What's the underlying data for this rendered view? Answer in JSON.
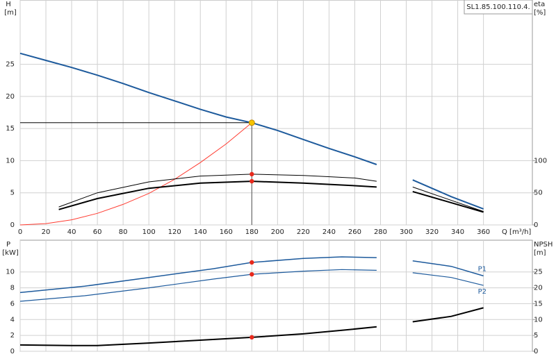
{
  "chart_data": [
    {
      "type": "line",
      "title": "SL1.85.100.110.4.",
      "y_label": "H",
      "y_unit": "[m]",
      "y2_label": "eta",
      "y2_unit": "[%]",
      "x_label": "Q [m³/h]",
      "xlim": [
        0,
        398
      ],
      "ylim": [
        0,
        35
      ],
      "y2lim": [
        0,
        350
      ],
      "xticks": [
        0,
        20,
        40,
        60,
        80,
        100,
        120,
        140,
        160,
        180,
        200,
        220,
        240,
        260,
        280,
        300,
        320,
        340,
        360
      ],
      "yticks": [
        0,
        5,
        10,
        15,
        20,
        25
      ],
      "y2ticks": [
        0,
        50,
        100
      ],
      "grid": true,
      "xtick_labels": true,
      "duty_point": {
        "x": 180,
        "y": 15.9,
        "color": "#f5c400"
      },
      "marker_x": 180,
      "marker_color": "#e8291c",
      "series": [
        {
          "color": "#1d5a9c",
          "width": 2,
          "x": [
            0,
            20,
            40,
            60,
            80,
            100,
            120,
            140,
            160,
            180,
            200,
            220,
            240,
            260,
            277,
            290,
            305,
            335,
            360
          ],
          "values": [
            26.7,
            25.6,
            24.5,
            23.3,
            22.0,
            20.6,
            19.3,
            18.0,
            16.8,
            15.9,
            14.7,
            13.3,
            11.9,
            10.6,
            9.4,
            null,
            7.0,
            4.4,
            2.5
          ]
        },
        {
          "color": "#ff3b30",
          "width": 1,
          "x": [
            0,
            20,
            40,
            60,
            80,
            100,
            120,
            140,
            160,
            180
          ],
          "values": [
            0,
            0.2,
            0.8,
            1.8,
            3.2,
            4.9,
            7.1,
            9.7,
            12.6,
            15.9
          ]
        },
        {
          "color": "#000000",
          "width": 1,
          "axis": "y2",
          "x": [
            30,
            60,
            100,
            140,
            180,
            220,
            260,
            277,
            290,
            305,
            360
          ],
          "values": [
            28,
            50,
            67,
            76,
            79,
            77,
            73,
            68,
            null,
            59,
            21
          ]
        },
        {
          "color": "#000000",
          "width": 2,
          "axis": "y2",
          "x": [
            30,
            60,
            100,
            140,
            180,
            220,
            260,
            277,
            290,
            305,
            360
          ],
          "values": [
            24,
            41,
            57,
            65,
            68,
            65,
            61,
            59,
            null,
            52,
            20
          ]
        }
      ]
    },
    {
      "type": "line",
      "y_label": "P",
      "y_unit": "[kW]",
      "y2_label": "NPSH",
      "y2_unit": "[m]",
      "xlim": [
        0,
        398
      ],
      "ylim": [
        0,
        14
      ],
      "y2lim": [
        0,
        35
      ],
      "xticks": [
        0,
        20,
        40,
        60,
        80,
        100,
        120,
        140,
        160,
        180,
        200,
        220,
        240,
        260,
        280,
        300,
        320,
        340,
        360
      ],
      "yticks": [
        0,
        2,
        4,
        6,
        8,
        10
      ],
      "y2ticks": [
        0,
        5,
        10,
        15,
        20,
        25
      ],
      "grid": true,
      "xtick_labels": false,
      "marker_x": 180,
      "marker_color": "#e8291c",
      "series": [
        {
          "name": "P1",
          "color": "#1d5a9c",
          "width": 1.5,
          "x": [
            0,
            50,
            100,
            150,
            180,
            220,
            250,
            277,
            290,
            305,
            335,
            360
          ],
          "values": [
            7.4,
            8.2,
            9.3,
            10.4,
            11.2,
            11.7,
            11.9,
            11.8,
            null,
            11.4,
            10.7,
            9.5
          ]
        },
        {
          "name": "P2",
          "color": "#1d5a9c",
          "width": 1.2,
          "x": [
            0,
            50,
            100,
            150,
            180,
            220,
            250,
            277,
            290,
            305,
            335,
            360
          ],
          "values": [
            6.3,
            7.0,
            8.0,
            9.1,
            9.7,
            10.1,
            10.3,
            10.2,
            null,
            9.9,
            9.3,
            8.3
          ]
        },
        {
          "color": "#000000",
          "width": 2,
          "axis": "y2",
          "x": [
            0,
            40,
            60,
            100,
            140,
            180,
            220,
            250,
            277,
            290,
            305,
            335,
            360
          ],
          "values": [
            2.0,
            1.8,
            1.8,
            2.6,
            3.5,
            4.4,
            5.5,
            6.6,
            7.7,
            null,
            9.3,
            11,
            13.7
          ]
        }
      ]
    }
  ]
}
